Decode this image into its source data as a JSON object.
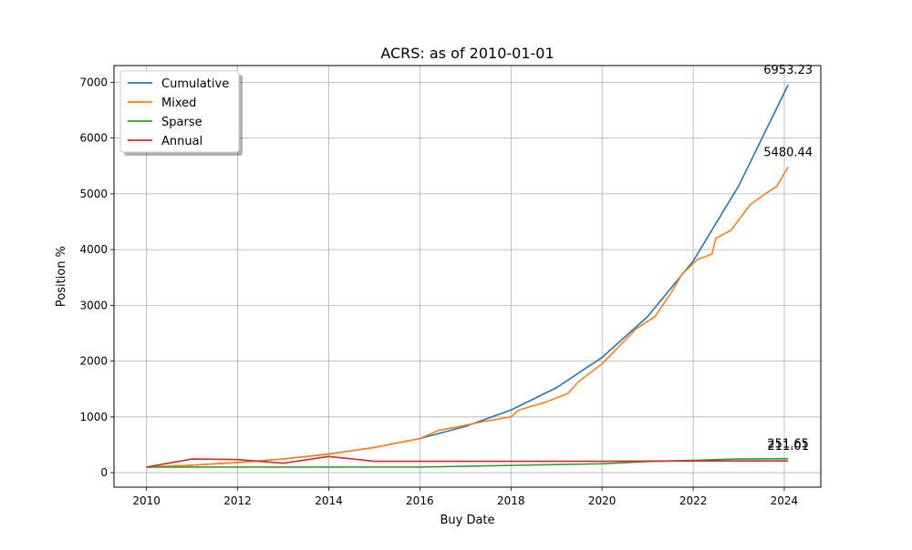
{
  "chart_data": {
    "type": "line",
    "title": "ACRS: as of 2010-01-01",
    "xlabel": "Buy Date",
    "ylabel": "Position %",
    "xlim": [
      "2009-04-15",
      "2024-10-20"
    ],
    "ylim": [
      -260,
      7300
    ],
    "x_ticks": [
      "2010",
      "2012",
      "2014",
      "2016",
      "2018",
      "2020",
      "2022",
      "2024"
    ],
    "y_ticks": [
      0,
      1000,
      2000,
      3000,
      4000,
      5000,
      6000,
      7000
    ],
    "grid": true,
    "legend_position": "upper-left",
    "series": [
      {
        "name": "Cumulative",
        "color": "#1f77b4",
        "points": [
          [
            "2010-01-01",
            100
          ],
          [
            "2011-01-01",
            134
          ],
          [
            "2012-01-01",
            182
          ],
          [
            "2013-01-01",
            246
          ],
          [
            "2014-01-01",
            333
          ],
          [
            "2015-01-01",
            452
          ],
          [
            "2016-01-01",
            612
          ],
          [
            "2017-01-01",
            830
          ],
          [
            "2018-01-01",
            1124
          ],
          [
            "2019-01-01",
            1524
          ],
          [
            "2020-01-01",
            2066
          ],
          [
            "2021-01-01",
            2800
          ],
          [
            "2022-01-01",
            3795
          ],
          [
            "2023-01-01",
            5144
          ],
          [
            "2024-02-01",
            6953.23
          ]
        ]
      },
      {
        "name": "Mixed",
        "color": "#ff7f0e",
        "points": [
          [
            "2010-01-01",
            100
          ],
          [
            "2011-01-01",
            134
          ],
          [
            "2012-01-01",
            182
          ],
          [
            "2013-01-01",
            246
          ],
          [
            "2014-01-01",
            333
          ],
          [
            "2015-01-01",
            452
          ],
          [
            "2016-01-01",
            612
          ],
          [
            "2016-04-01",
            700
          ],
          [
            "2016-06-01",
            760
          ],
          [
            "2017-01-01",
            850
          ],
          [
            "2017-06-01",
            920
          ],
          [
            "2018-01-01",
            1000
          ],
          [
            "2018-03-01",
            1120
          ],
          [
            "2018-10-01",
            1260
          ],
          [
            "2019-04-01",
            1420
          ],
          [
            "2019-07-01",
            1640
          ],
          [
            "2020-01-01",
            1950
          ],
          [
            "2020-06-01",
            2300
          ],
          [
            "2020-10-01",
            2580
          ],
          [
            "2021-03-01",
            2800
          ],
          [
            "2021-07-01",
            3200
          ],
          [
            "2021-10-01",
            3550
          ],
          [
            "2022-02-01",
            3820
          ],
          [
            "2022-06-01",
            3920
          ],
          [
            "2022-07-01",
            4200
          ],
          [
            "2022-11-01",
            4350
          ],
          [
            "2023-04-01",
            4800
          ],
          [
            "2023-08-01",
            5000
          ],
          [
            "2023-11-01",
            5130
          ],
          [
            "2024-02-01",
            5480.44
          ]
        ]
      },
      {
        "name": "Sparse",
        "color": "#2ca02c",
        "points": [
          [
            "2010-01-01",
            100
          ],
          [
            "2016-01-01",
            100
          ],
          [
            "2018-01-01",
            130
          ],
          [
            "2020-01-01",
            160
          ],
          [
            "2021-01-01",
            200
          ],
          [
            "2022-01-01",
            220
          ],
          [
            "2022-07-01",
            235
          ],
          [
            "2023-01-01",
            245
          ],
          [
            "2024-02-01",
            251.65
          ]
        ]
      },
      {
        "name": "Annual",
        "color": "#d62728",
        "points": [
          [
            "2010-01-01",
            100
          ],
          [
            "2011-01-01",
            245
          ],
          [
            "2012-01-01",
            235
          ],
          [
            "2013-01-01",
            170
          ],
          [
            "2014-01-01",
            290
          ],
          [
            "2015-01-01",
            205
          ],
          [
            "2016-01-01",
            205
          ],
          [
            "2018-01-01",
            205
          ],
          [
            "2020-01-01",
            205
          ],
          [
            "2022-01-01",
            210
          ],
          [
            "2024-02-01",
            211.01
          ]
        ]
      }
    ],
    "annotations": [
      {
        "series": "Cumulative",
        "text": "6953.23"
      },
      {
        "series": "Mixed",
        "text": "5480.44"
      },
      {
        "series": "Sparse",
        "text": "251.65"
      },
      {
        "series": "Annual",
        "text": "211.01"
      }
    ]
  }
}
